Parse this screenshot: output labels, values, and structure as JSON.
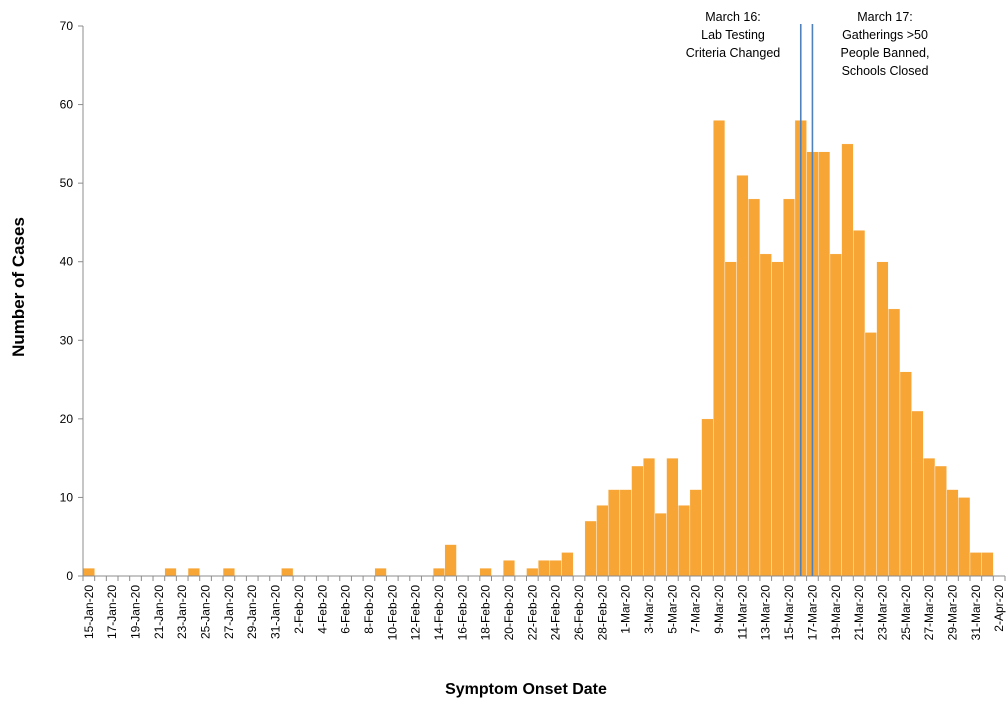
{
  "chart_data": {
    "type": "bar",
    "xlabel": "Symptom Onset Date",
    "ylabel": "Number of Cases",
    "ylim": [
      0,
      70
    ],
    "yticks": [
      0,
      10,
      20,
      30,
      40,
      50,
      60,
      70
    ],
    "grid": false,
    "bar_color": "#F7A535",
    "annotation_line_color": "#4F81BD",
    "categories": [
      "15-Jan-20",
      "16-Jan-20",
      "17-Jan-20",
      "18-Jan-20",
      "19-Jan-20",
      "20-Jan-20",
      "21-Jan-20",
      "22-Jan-20",
      "23-Jan-20",
      "24-Jan-20",
      "25-Jan-20",
      "26-Jan-20",
      "27-Jan-20",
      "28-Jan-20",
      "29-Jan-20",
      "30-Jan-20",
      "31-Jan-20",
      "1-Feb-20",
      "2-Feb-20",
      "3-Feb-20",
      "4-Feb-20",
      "5-Feb-20",
      "6-Feb-20",
      "7-Feb-20",
      "8-Feb-20",
      "9-Feb-20",
      "10-Feb-20",
      "11-Feb-20",
      "12-Feb-20",
      "13-Feb-20",
      "14-Feb-20",
      "15-Feb-20",
      "16-Feb-20",
      "17-Feb-20",
      "18-Feb-20",
      "19-Feb-20",
      "20-Feb-20",
      "21-Feb-20",
      "22-Feb-20",
      "23-Feb-20",
      "24-Feb-20",
      "25-Feb-20",
      "26-Feb-20",
      "27-Feb-20",
      "28-Feb-20",
      "29-Feb-20",
      "1-Mar-20",
      "2-Mar-20",
      "3-Mar-20",
      "4-Mar-20",
      "5-Mar-20",
      "6-Mar-20",
      "7-Mar-20",
      "8-Mar-20",
      "9-Mar-20",
      "10-Mar-20",
      "11-Mar-20",
      "12-Mar-20",
      "13-Mar-20",
      "14-Mar-20",
      "15-Mar-20",
      "16-Mar-20",
      "17-Mar-20",
      "18-Mar-20",
      "19-Mar-20",
      "20-Mar-20",
      "21-Mar-20",
      "22-Mar-20",
      "23-Mar-20",
      "24-Mar-20",
      "25-Mar-20",
      "26-Mar-20",
      "27-Mar-20",
      "28-Mar-20",
      "29-Mar-20",
      "30-Mar-20",
      "31-Mar-20",
      "1-Apr-20",
      "2-Apr-20"
    ],
    "tick_labels": [
      "15-Jan-20",
      "17-Jan-20",
      "19-Jan-20",
      "21-Jan-20",
      "23-Jan-20",
      "25-Jan-20",
      "27-Jan-20",
      "29-Jan-20",
      "31-Jan-20",
      "2-Feb-20",
      "4-Feb-20",
      "6-Feb-20",
      "8-Feb-20",
      "10-Feb-20",
      "12-Feb-20",
      "14-Feb-20",
      "16-Feb-20",
      "18-Feb-20",
      "20-Feb-20",
      "22-Feb-20",
      "24-Feb-20",
      "26-Feb-20",
      "28-Feb-20",
      "1-Mar-20",
      "3-Mar-20",
      "5-Mar-20",
      "7-Mar-20",
      "9-Mar-20",
      "11-Mar-20",
      "13-Mar-20",
      "15-Mar-20",
      "17-Mar-20",
      "19-Mar-20",
      "21-Mar-20",
      "23-Mar-20",
      "25-Mar-20",
      "27-Mar-20",
      "29-Mar-20",
      "31-Mar-20",
      "2-Apr-20"
    ],
    "values": [
      1,
      0,
      0,
      0,
      0,
      0,
      0,
      1,
      0,
      1,
      0,
      0,
      1,
      0,
      0,
      0,
      0,
      1,
      0,
      0,
      0,
      0,
      0,
      0,
      0,
      1,
      0,
      0,
      0,
      0,
      1,
      4,
      0,
      0,
      1,
      0,
      2,
      0,
      1,
      2,
      2,
      3,
      0,
      7,
      9,
      11,
      11,
      14,
      15,
      8,
      15,
      9,
      11,
      20,
      58,
      40,
      51,
      48,
      41,
      40,
      48,
      58,
      54,
      54,
      41,
      55,
      44,
      31,
      40,
      34,
      26,
      21,
      15,
      14,
      11,
      10,
      3,
      3,
      0
    ],
    "annotations": [
      {
        "date": "16-Mar-20",
        "lines": [
          "March 16:",
          "Lab Testing",
          "Criteria Changed"
        ]
      },
      {
        "date": "17-Mar-20",
        "lines": [
          "March 17:",
          "Gatherings >50",
          "People Banned,",
          "Schools Closed"
        ]
      }
    ]
  }
}
